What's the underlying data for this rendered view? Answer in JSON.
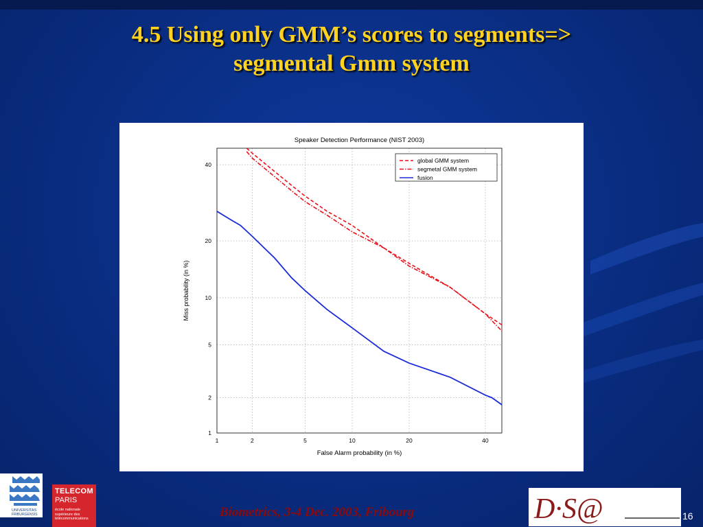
{
  "slide": {
    "title_line1": "4.5 Using only GMM’s scores to segments=>",
    "title_line2": "segmental Gmm system",
    "footer": "Biometrics, 3-4 Dec. 2003, Fribourg",
    "page_number": "16"
  },
  "logos": {
    "fribourg": "UNIVERSITAS FRIBURGENSIS",
    "telecom_name1": "TELECOM",
    "telecom_name2": "PARIS",
    "telecom_tagline": "école nationale supérieure des télécommunications",
    "dsa_text": "D·S@"
  },
  "colors": {
    "background": "#0a2f86",
    "title": "#ffd21f",
    "footer_text": "#8b0a0a",
    "red_series": "#e8101a",
    "blue_series": "#1a2bd8"
  },
  "chart_data": {
    "type": "line",
    "title": "Speaker Detection Performance (NIST 2003)",
    "xlabel": "False Alarm probability (in %)",
    "ylabel": "Miss probability (in %)",
    "x_scale": "probit",
    "y_scale": "probit",
    "xlim": [
      1,
      45
    ],
    "ylim": [
      1,
      45
    ],
    "x_ticks": [
      "1",
      "2",
      "5",
      "10",
      "20",
      "40"
    ],
    "y_ticks": [
      "1",
      "2",
      "5",
      "10",
      "20",
      "40"
    ],
    "grid": true,
    "legend_position": "top-right",
    "series": [
      {
        "name": "global GMM system",
        "style": "dashed",
        "color": "#e8101a",
        "x": [
          1.8,
          2.0,
          3.0,
          4.0,
          5.0,
          7.0,
          10.0,
          15.0,
          20.0,
          30.0,
          40.0,
          45.0
        ],
        "y": [
          45.0,
          43.5,
          38.0,
          34.0,
          31.0,
          27.0,
          23.5,
          18.5,
          15.5,
          11.5,
          8.0,
          6.8
        ]
      },
      {
        "name": "segmetal GMM system",
        "style": "dash-dot",
        "color": "#e8101a",
        "x": [
          1.8,
          2.0,
          3.0,
          4.0,
          5.0,
          7.0,
          10.0,
          15.0,
          20.0,
          30.0,
          40.0,
          45.0
        ],
        "y": [
          44.0,
          42.0,
          36.5,
          32.5,
          29.5,
          26.0,
          22.0,
          18.5,
          15.0,
          11.5,
          8.0,
          6.2
        ]
      },
      {
        "name": "fusion",
        "style": "solid",
        "color": "#1a2bd8",
        "x": [
          1.0,
          1.3,
          1.6,
          2.0,
          3.0,
          4.0,
          5.0,
          7.0,
          10.0,
          15.0,
          20.0,
          30.0,
          40.0,
          42.0,
          45.0
        ],
        "y": [
          27.0,
          25.0,
          23.5,
          21.0,
          16.5,
          13.0,
          11.0,
          8.5,
          6.5,
          4.5,
          3.7,
          2.9,
          2.1,
          2.0,
          1.75
        ]
      }
    ]
  }
}
